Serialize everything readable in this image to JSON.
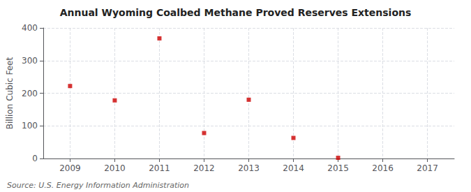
{
  "chart_data": {
    "type": "scatter",
    "title": "Annual Wyoming Coalbed Methane Proved Reserves Extensions",
    "ylabel": "Billion Cubic Feet",
    "annotations": [
      "Source: U.S. Energy Information Administration"
    ],
    "x": [
      2009,
      2010,
      2011,
      2012,
      2013,
      2014,
      2015,
      2016,
      2017
    ],
    "values": [
      222,
      178,
      368,
      78,
      180,
      63,
      2,
      null,
      null
    ],
    "color": "#cc0000",
    "marker": "square",
    "xlim": [
      2008.4,
      2017.6
    ],
    "xticks": [
      2009,
      2010,
      2011,
      2012,
      2013,
      2014,
      2015,
      2016,
      2017
    ],
    "ylim": [
      0,
      400
    ],
    "yticks": [
      0,
      100,
      200,
      300,
      400
    ],
    "grid": true
  }
}
